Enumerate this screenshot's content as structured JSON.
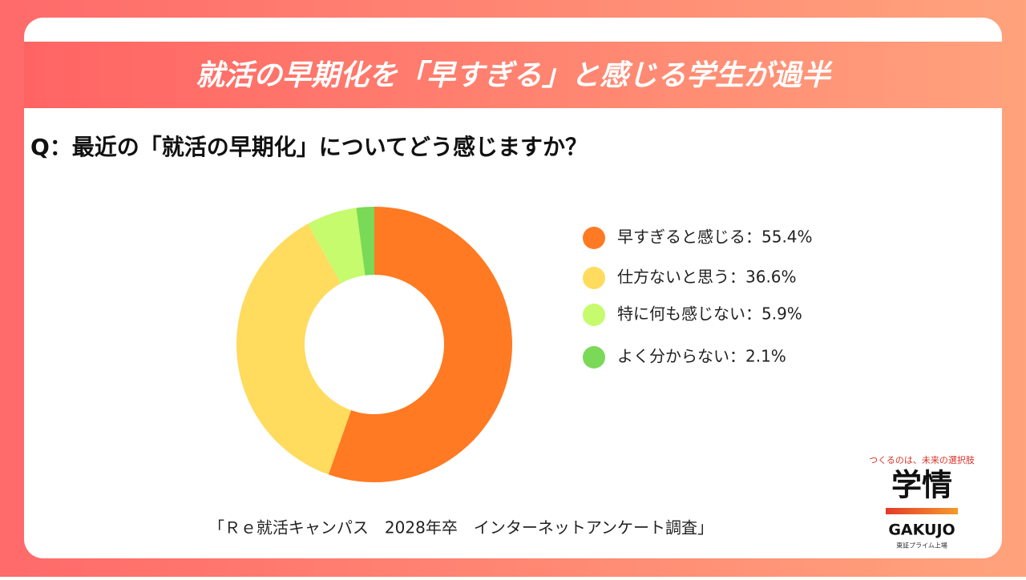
{
  "header": {
    "title": "就活の早期化を「早すぎる」と感じる学生が過半"
  },
  "chart_data": {
    "type": "donut",
    "title": "Q：最近の「就活の早期化」についてどう感じますか？",
    "categories": [
      "早すぎると感じる：55.4%",
      "仕方ないと思う：36.6%",
      "特に何も感じない：5.9%",
      "よく分からない：2.1%"
    ],
    "values": [
      55.4,
      36.6,
      5.9,
      2.1
    ],
    "colors": [
      "#ff7a22",
      "#ffdb5e",
      "#c6fb6e",
      "#7ad957"
    ],
    "source": "「Ｒｅ就活キャンパス　2028年卒　インターネットアンケート調査」"
  },
  "logo": {
    "tagline": "つくるのは、未来の選択肢",
    "name": "学情",
    "roman": "GAKUJO",
    "listing": "東証プライム上場"
  }
}
